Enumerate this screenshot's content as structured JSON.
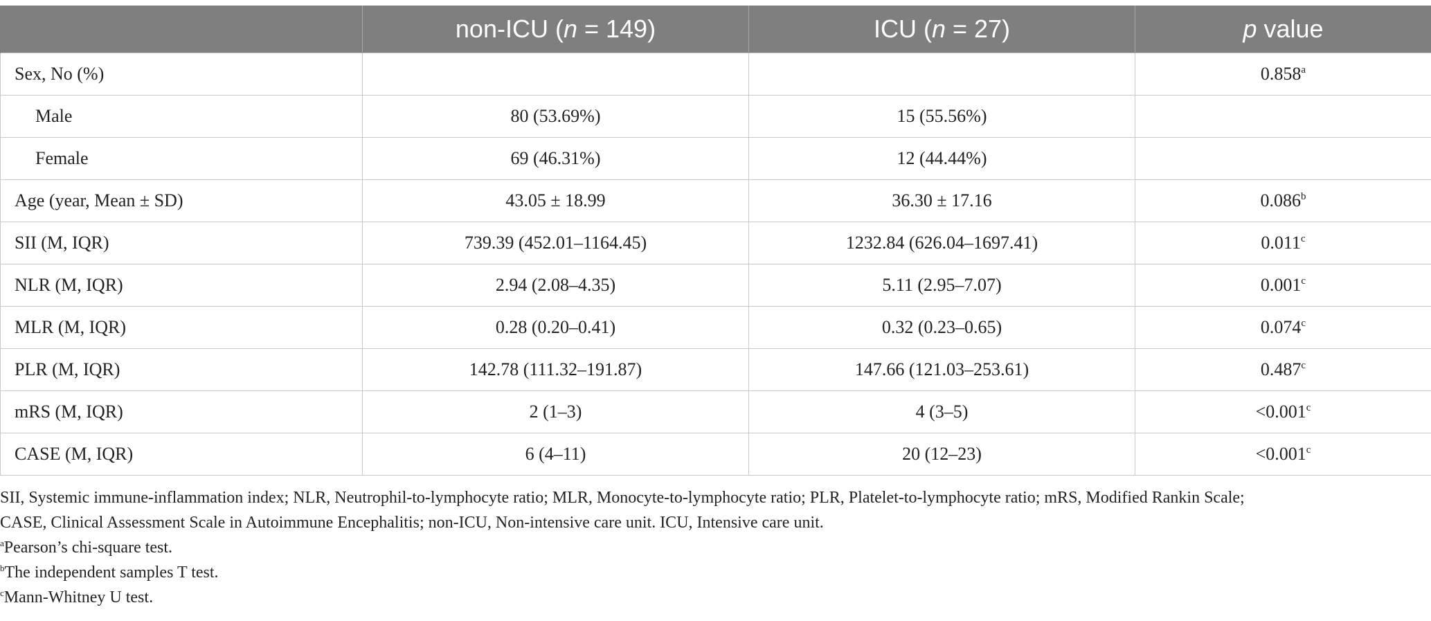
{
  "table": {
    "header": {
      "col0": "",
      "col1_pre": "non-ICU (",
      "col1_italic": "n",
      "col1_post": " = 149)",
      "col2_pre": "ICU (",
      "col2_italic": "n",
      "col2_post": " = 27)",
      "col3_italic": "p",
      "col3_post": " value"
    },
    "rows": [
      {
        "label": "Sex, No (%)",
        "noicu": "",
        "icu": "",
        "p": "0.858",
        "sup": "a"
      },
      {
        "label": "Male",
        "noicu": "80 (53.69%)",
        "icu": "15 (55.56%)",
        "p": "",
        "sup": ""
      },
      {
        "label": "Female",
        "noicu": "69 (46.31%)",
        "icu": "12 (44.44%)",
        "p": "",
        "sup": ""
      },
      {
        "label": "Age (year, Mean ± SD)",
        "noicu": "43.05 ± 18.99",
        "icu": "36.30 ± 17.16",
        "p": "0.086",
        "sup": "b"
      },
      {
        "label": "SII (M, IQR)",
        "noicu": "739.39 (452.01–1164.45)",
        "icu": "1232.84 (626.04–1697.41)",
        "p": "0.011",
        "sup": "c"
      },
      {
        "label": "NLR (M, IQR)",
        "noicu": "2.94 (2.08–4.35)",
        "icu": "5.11 (2.95–7.07)",
        "p": "0.001",
        "sup": "c"
      },
      {
        "label": "MLR (M, IQR)",
        "noicu": "0.28 (0.20–0.41)",
        "icu": "0.32 (0.23–0.65)",
        "p": "0.074",
        "sup": "c"
      },
      {
        "label": "PLR (M, IQR)",
        "noicu": "142.78 (111.32–191.87)",
        "icu": "147.66 (121.03–253.61)",
        "p": "0.487",
        "sup": "c"
      },
      {
        "label": "mRS (M, IQR)",
        "noicu": "2 (1–3)",
        "icu": "4 (3–5)",
        "p": "<0.001",
        "sup": "c"
      },
      {
        "label": "CASE (M, IQR)",
        "noicu": "6 (4–11)",
        "icu": "20 (12–23)",
        "p": "<0.001",
        "sup": "c"
      }
    ]
  },
  "footnotes": {
    "abbrev_line1": "SII, Systemic immune-inflammation index; NLR, Neutrophil-to-lymphocyte ratio; MLR, Monocyte-to-lymphocyte ratio; PLR, Platelet-to-lymphocyte ratio; mRS, Modified Rankin Scale;",
    "abbrev_line2": "CASE, Clinical Assessment Scale in Autoimmune Encephalitis; non-ICU, Non-intensive care unit. ICU, Intensive care unit.",
    "a_mark": "a",
    "a_text": "Pearson’s chi-square test.",
    "b_mark": "b",
    "b_text": "The independent samples T test.",
    "c_mark": "c",
    "c_text": "Mann-Whitney U test."
  },
  "colors": {
    "header_bg": "#7f7f7f",
    "header_text": "#ffffff",
    "grid_line": "#c8c8c8",
    "body_text": "#222222"
  }
}
